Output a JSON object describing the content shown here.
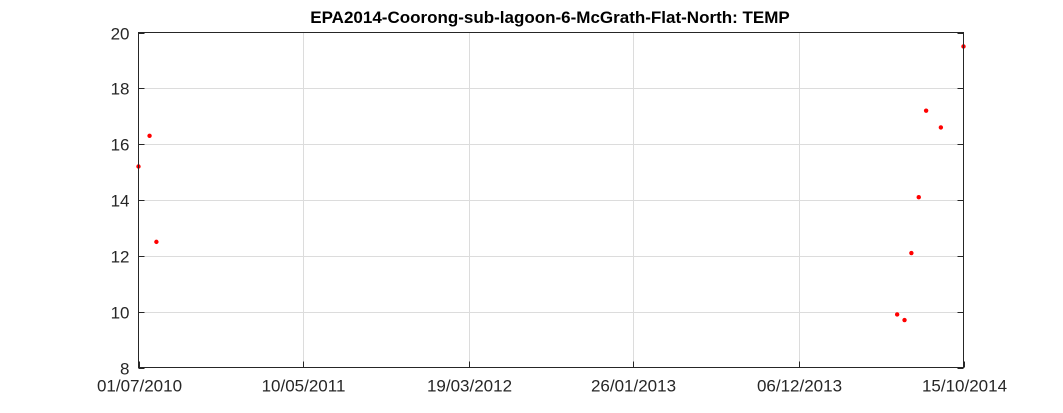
{
  "chart_data": {
    "type": "scatter",
    "title": "EPA2014-Coorong-sub-lagoon-6-McGrath-Flat-North: TEMP",
    "xlabel": "",
    "ylabel": "",
    "x_axis_type": "date",
    "xlim": [
      "2010-07-01",
      "2014-10-15"
    ],
    "ylim": [
      8,
      20
    ],
    "x_ticks": [
      "2010-07-01",
      "2011-05-10",
      "2012-03-19",
      "2013-01-26",
      "2013-12-06",
      "2014-10-15"
    ],
    "x_tick_labels": [
      "01/07/2010",
      "10/05/2011",
      "19/03/2012",
      "26/01/2013",
      "06/12/2013",
      "15/10/2014"
    ],
    "y_ticks": [
      8,
      10,
      12,
      14,
      16,
      18,
      20
    ],
    "y_tick_labels": [
      "8",
      "10",
      "12",
      "14",
      "16",
      "18",
      "20"
    ],
    "grid": true,
    "marker_color": "#ff0000",
    "series": [
      {
        "x": [
          "2010-07-01",
          "2010-07-22",
          "2010-08-04",
          "2014-06-11",
          "2014-06-25",
          "2014-07-08",
          "2014-07-22",
          "2014-08-05",
          "2014-09-02",
          "2014-10-15"
        ],
        "y": [
          15.2,
          16.3,
          12.5,
          9.9,
          9.7,
          12.1,
          14.1,
          17.2,
          16.6,
          19.5
        ]
      }
    ]
  }
}
